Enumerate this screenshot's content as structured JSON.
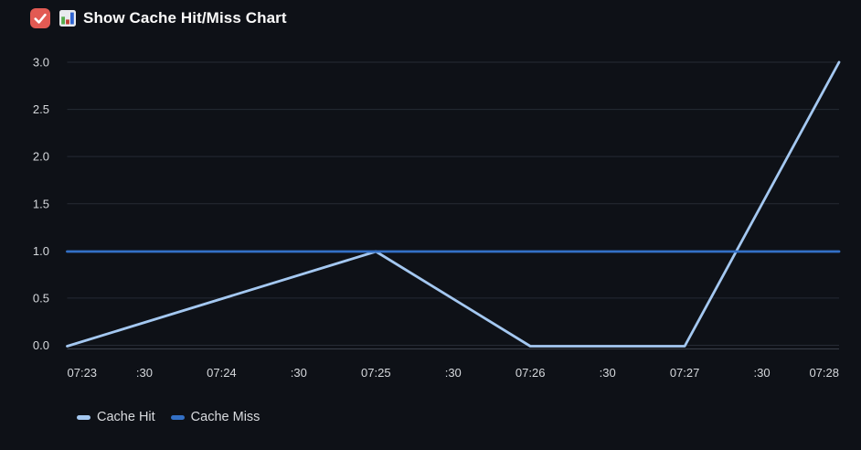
{
  "header": {
    "title": "Show Cache Hit/Miss Chart",
    "checkbox_checked": true,
    "emoji_icon": "bar-chart-emoji"
  },
  "colors": {
    "background": "#0e1117",
    "checkbox_checked": "#e25a53",
    "title_text": "#fafafa",
    "grid_line": "#262b34",
    "axis_line": "#3a3f49",
    "tick_label": "#d5d8dc",
    "legend_label": "#d9dbdf",
    "cache_hit_line": "#a4c8f1",
    "cache_miss_line": "#3370c6"
  },
  "chart_data": {
    "type": "line",
    "title": "",
    "xlabel": "",
    "ylabel": "",
    "grid": true,
    "legend_position": "bottom-left",
    "ylim": [
      0,
      3
    ],
    "x_ticks": [
      "07:23",
      ":30",
      "07:24",
      ":30",
      "07:25",
      ":30",
      "07:26",
      ":30",
      "07:27",
      ":30",
      "07:28"
    ],
    "y_ticks": [
      "0.0",
      "0.5",
      "1.0",
      "1.5",
      "2.0",
      "2.5",
      "3.0"
    ],
    "series": [
      {
        "name": "Cache Hit",
        "color": "#a4c8f1",
        "points": [
          {
            "t": "07:23",
            "i": 0,
            "v": 0
          },
          {
            "t": "07:25",
            "i": 4,
            "v": 1
          },
          {
            "t": "07:26",
            "i": 6,
            "v": 0
          },
          {
            "t": "07:27",
            "i": 8,
            "v": 0
          },
          {
            "t": "07:28",
            "i": 10,
            "v": 3
          }
        ]
      },
      {
        "name": "Cache Miss",
        "color": "#3370c6",
        "points": [
          {
            "t": "07:23",
            "i": 0,
            "v": 1
          },
          {
            "t": "07:28",
            "i": 10,
            "v": 1
          }
        ]
      }
    ]
  }
}
